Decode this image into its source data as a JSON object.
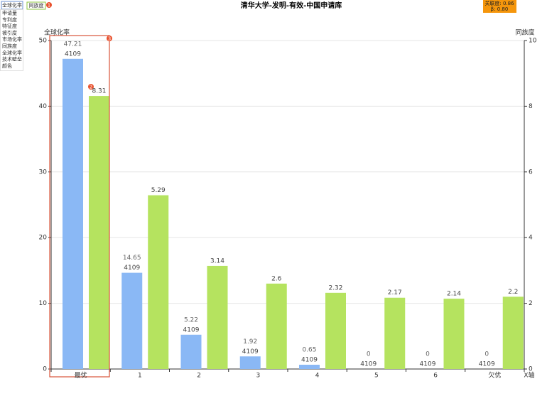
{
  "ui": {
    "dropdown": {
      "selected": "全球化率",
      "options": [
        "申请量",
        "专利度",
        "特征度",
        "被引度",
        "市场化率",
        "同族度",
        "全球化率",
        "技术壁垒",
        "颜色"
      ]
    },
    "info": [
      "关联度: 0.86",
      "β:  0.80"
    ]
  },
  "chart_data": {
    "type": "bar",
    "title": "清华大学-发明-有效-中国申请库",
    "x_label": "X轴",
    "categories": [
      "最优",
      "1",
      "2",
      "3",
      "4",
      "5",
      "6",
      "欠优"
    ],
    "series": [
      {
        "name": "全球化率",
        "color": "#8ab8f5",
        "values": [
          47.21,
          14.65,
          5.22,
          1.92,
          0.65,
          0,
          0,
          0
        ],
        "counts": [
          4109,
          4109,
          4109,
          4109,
          4109,
          4109,
          4109,
          4109
        ]
      },
      {
        "name": "同族度",
        "color": "#b5e35f",
        "axis": "y2",
        "values": [
          8.31,
          5.29,
          3.14,
          2.6,
          2.32,
          2.17,
          2.14,
          2.2
        ]
      }
    ],
    "ylim": [
      0,
      50
    ],
    "yticks": [
      0,
      10,
      20,
      30,
      40,
      50
    ],
    "y2lim": [
      0,
      10
    ],
    "y2ticks": [
      0,
      2,
      4,
      6,
      8,
      10
    ],
    "grid": true,
    "annotations": [
      "1",
      "2",
      "3"
    ]
  }
}
